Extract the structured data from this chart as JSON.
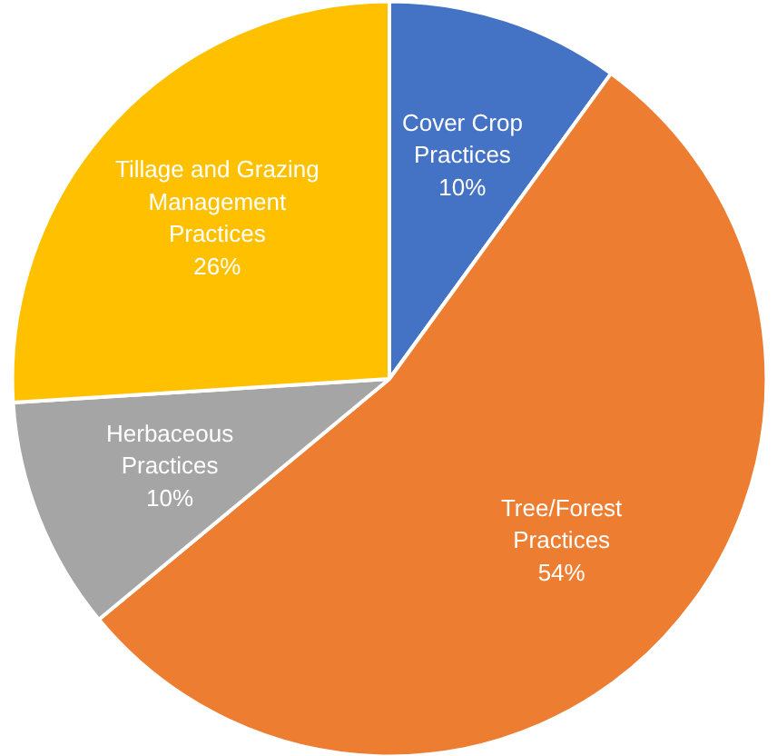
{
  "chart_data": {
    "type": "pie",
    "categories": [
      "Cover Crop Practices",
      "Tree/Forest Practices",
      "Herbaceous Practices",
      "Tillage and Grazing Management Practices"
    ],
    "values": [
      10,
      54,
      10,
      26
    ],
    "colors": [
      "#4472c4",
      "#ed7d31",
      "#a5a5a5",
      "#ffc000"
    ],
    "value_labels": [
      "10%",
      "54%",
      "10%",
      "26%"
    ],
    "legend": false
  }
}
